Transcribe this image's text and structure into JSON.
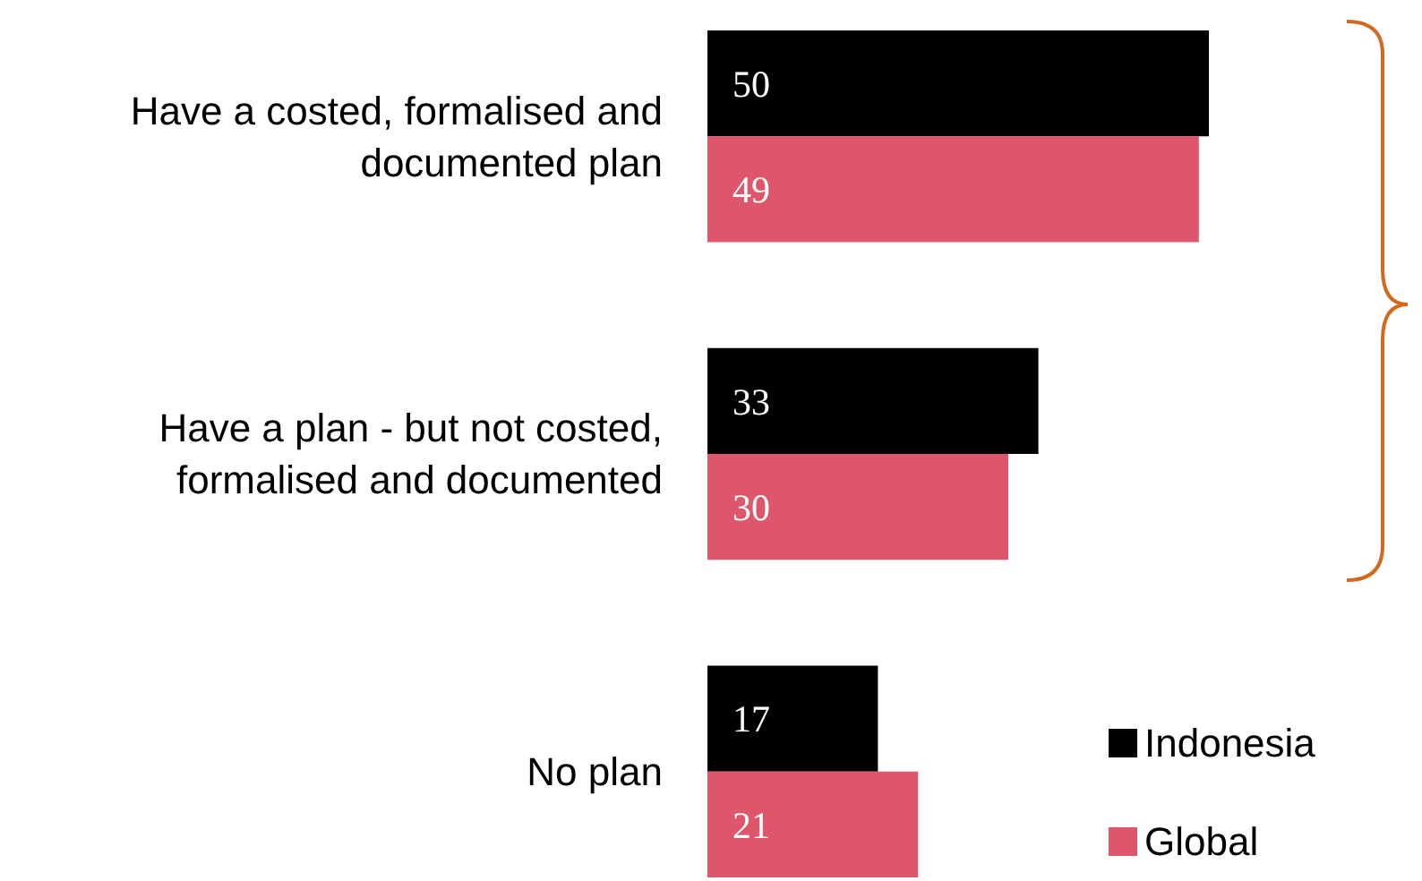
{
  "chart_data": {
    "type": "bar",
    "orientation": "horizontal",
    "categories": [
      "Have a costed, formalised and documented plan",
      "Have a plan - but not costed, formalised and documented",
      "No plan"
    ],
    "series": [
      {
        "name": "Indonesia",
        "color": "#000000",
        "values": [
          50,
          33,
          17
        ]
      },
      {
        "name": "Global",
        "color": "#dd566c",
        "values": [
          49,
          30,
          21
        ]
      }
    ],
    "tick_labels": "y",
    "data_labels": true,
    "legend": "bottom right"
  }
}
